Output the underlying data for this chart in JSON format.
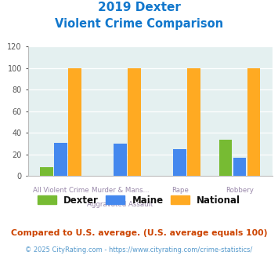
{
  "title_line1": "2019 Dexter",
  "title_line2": "Violent Crime Comparison",
  "x_labels_top": [
    "All Violent Crime",
    "Murder & Mans...",
    "Rape",
    "Robbery"
  ],
  "x_labels_bottom": [
    "",
    "Aggravated Assault",
    "",
    ""
  ],
  "dexter": [
    8,
    0,
    0,
    34
  ],
  "maine": [
    31,
    30,
    25,
    17
  ],
  "national": [
    100,
    100,
    100,
    100
  ],
  "dexter_color": "#77bb33",
  "maine_color": "#4488ee",
  "national_color": "#ffaa22",
  "title_color": "#1177cc",
  "bg_color": "#e4f0f0",
  "ylim": [
    0,
    120
  ],
  "yticks": [
    0,
    20,
    40,
    60,
    80,
    100,
    120
  ],
  "footnote1": "Compared to U.S. average. (U.S. average equals 100)",
  "footnote2": "© 2025 CityRating.com - https://www.cityrating.com/crime-statistics/",
  "footnote1_color": "#cc4400",
  "footnote2_color": "#5599cc",
  "legend_labels": [
    "Dexter",
    "Maine",
    "National"
  ],
  "xlabel_color": "#9988aa"
}
